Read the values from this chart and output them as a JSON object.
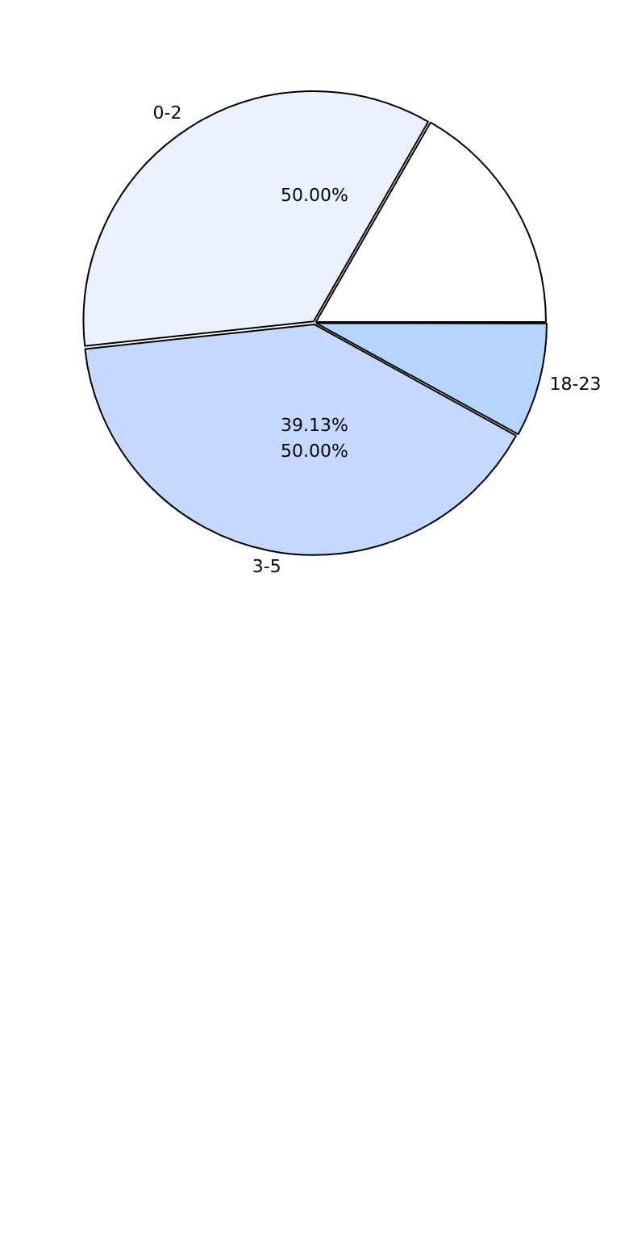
{
  "chart_data": {
    "type": "pie",
    "categories": [
      "18-23",
      "3-5",
      "0-2",
      null
    ],
    "values": [
      8,
      40.3,
      35,
      16.7
    ],
    "colors": [
      "#b5d5ff",
      "#c5d9ff",
      "#eaf2ff",
      "#ffffff"
    ],
    "annotations": [
      "50.00%",
      "39.13%",
      "50.00%"
    ]
  }
}
